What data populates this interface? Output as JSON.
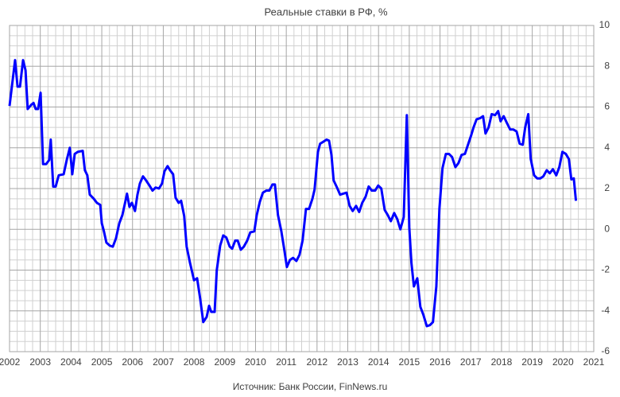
{
  "chart_data": {
    "type": "line",
    "title": "Реальные ставки в РФ, %",
    "source": "Источник: Банк России, FinNews.ru",
    "xlim": [
      2002,
      2021
    ],
    "xticks": [
      2002,
      2003,
      2004,
      2005,
      2006,
      2007,
      2008,
      2009,
      2010,
      2011,
      2012,
      2013,
      2014,
      2015,
      2016,
      2017,
      2018,
      2019,
      2020,
      2021
    ],
    "ylim": [
      -6,
      10
    ],
    "yticks": [
      -6,
      -4,
      -2,
      0,
      2,
      4,
      6,
      8,
      10
    ],
    "grid": true,
    "color": "#0000ff",
    "x": [
      2002.0,
      2002.1,
      2002.18,
      2002.26,
      2002.34,
      2002.44,
      2002.52,
      2002.59,
      2002.7,
      2002.78,
      2002.85,
      2002.93,
      2003.01,
      2003.09,
      2003.19,
      2003.29,
      2003.34,
      2003.42,
      2003.5,
      2003.6,
      2003.76,
      2003.86,
      2003.96,
      2004.04,
      2004.12,
      2004.22,
      2004.38,
      2004.45,
      2004.53,
      2004.61,
      2004.74,
      2004.84,
      2004.95,
      2005.0,
      2005.07,
      2005.15,
      2005.26,
      2005.36,
      2005.46,
      2005.57,
      2005.67,
      2005.75,
      2005.82,
      2005.9,
      2005.98,
      2006.08,
      2006.16,
      2006.24,
      2006.34,
      2006.44,
      2006.55,
      2006.65,
      2006.75,
      2006.86,
      2006.96,
      2007.04,
      2007.14,
      2007.22,
      2007.32,
      2007.4,
      2007.5,
      2007.58,
      2007.68,
      2007.76,
      2007.87,
      2008.0,
      2008.1,
      2008.2,
      2008.3,
      2008.41,
      2008.49,
      2008.56,
      2008.67,
      2008.74,
      2008.85,
      2008.95,
      2009.05,
      2009.16,
      2009.24,
      2009.34,
      2009.42,
      2009.52,
      2009.62,
      2009.73,
      2009.83,
      2009.96,
      2010.04,
      2010.14,
      2010.24,
      2010.35,
      2010.45,
      2010.55,
      2010.63,
      2010.73,
      2010.84,
      2010.94,
      2011.02,
      2011.12,
      2011.22,
      2011.33,
      2011.43,
      2011.53,
      2011.64,
      2011.74,
      2011.85,
      2011.92,
      2012.03,
      2012.1,
      2012.21,
      2012.31,
      2012.39,
      2012.47,
      2012.54,
      2012.65,
      2012.75,
      2012.85,
      2012.96,
      2013.06,
      2013.16,
      2013.27,
      2013.37,
      2013.47,
      2013.58,
      2013.68,
      2013.78,
      2013.89,
      2013.99,
      2014.09,
      2014.2,
      2014.3,
      2014.4,
      2014.51,
      2014.61,
      2014.71,
      2014.82,
      2014.92,
      2015.0,
      2015.07,
      2015.15,
      2015.26,
      2015.36,
      2015.46,
      2015.57,
      2015.67,
      2015.77,
      2015.88,
      2015.98,
      2016.08,
      2016.19,
      2016.29,
      2016.39,
      2016.5,
      2016.6,
      2016.7,
      2016.81,
      2016.91,
      2017.01,
      2017.09,
      2017.19,
      2017.3,
      2017.4,
      2017.48,
      2017.58,
      2017.68,
      2017.79,
      2017.89,
      2017.97,
      2018.07,
      2018.18,
      2018.28,
      2018.38,
      2018.49,
      2018.59,
      2018.69,
      2018.77,
      2018.87,
      2018.95,
      2019.06,
      2019.16,
      2019.26,
      2019.36,
      2019.47,
      2019.57,
      2019.67,
      2019.78,
      2019.88,
      2019.98,
      2020.09,
      2020.19,
      2020.27,
      2020.35,
      2020.42
    ],
    "values": [
      6.05,
      7.3,
      8.3,
      7.0,
      7.0,
      8.3,
      7.8,
      5.9,
      6.1,
      6.2,
      5.9,
      5.9,
      6.7,
      3.2,
      3.2,
      3.4,
      4.4,
      2.1,
      2.1,
      2.65,
      2.7,
      3.4,
      4.0,
      2.7,
      3.7,
      3.8,
      3.85,
      2.9,
      2.65,
      1.7,
      1.5,
      1.3,
      1.2,
      0.3,
      -0.1,
      -0.65,
      -0.8,
      -0.85,
      -0.45,
      0.3,
      0.7,
      1.25,
      1.75,
      1.1,
      1.3,
      0.9,
      1.7,
      2.25,
      2.6,
      2.4,
      2.15,
      1.9,
      2.05,
      2.0,
      2.25,
      2.85,
      3.1,
      2.9,
      2.7,
      1.55,
      1.3,
      1.4,
      0.65,
      -0.85,
      -1.65,
      -2.5,
      -2.4,
      -3.4,
      -4.55,
      -4.3,
      -3.75,
      -4.05,
      -4.05,
      -2.0,
      -0.8,
      -0.3,
      -0.4,
      -0.85,
      -0.95,
      -0.55,
      -0.55,
      -1.0,
      -0.85,
      -0.55,
      -0.15,
      -0.1,
      0.7,
      1.35,
      1.8,
      1.9,
      1.9,
      2.2,
      2.2,
      0.7,
      -0.1,
      -1.05,
      -1.85,
      -1.5,
      -1.4,
      -1.55,
      -1.25,
      -0.55,
      1.0,
      1.0,
      1.5,
      1.95,
      3.8,
      4.2,
      4.3,
      4.4,
      4.35,
      3.65,
      2.4,
      2.05,
      1.7,
      1.75,
      1.8,
      1.15,
      0.9,
      1.15,
      0.85,
      1.3,
      1.6,
      2.1,
      1.9,
      1.9,
      2.15,
      2.0,
      0.95,
      0.7,
      0.4,
      0.8,
      0.5,
      0.0,
      0.6,
      5.6,
      0.1,
      -1.65,
      -2.8,
      -2.4,
      -3.8,
      -4.2,
      -4.75,
      -4.7,
      -4.55,
      -2.8,
      1.0,
      3.0,
      3.7,
      3.7,
      3.55,
      3.05,
      3.25,
      3.65,
      3.7,
      4.15,
      4.6,
      5.0,
      5.4,
      5.45,
      5.55,
      4.7,
      5.0,
      5.65,
      5.6,
      5.8,
      5.3,
      5.55,
      5.2,
      4.9,
      4.9,
      4.8,
      4.2,
      4.15,
      5.0,
      5.65,
      3.45,
      2.65,
      2.5,
      2.5,
      2.6,
      2.9,
      2.75,
      2.95,
      2.65,
      3.05,
      3.8,
      3.7,
      3.45,
      2.45,
      2.5,
      1.4
    ]
  }
}
